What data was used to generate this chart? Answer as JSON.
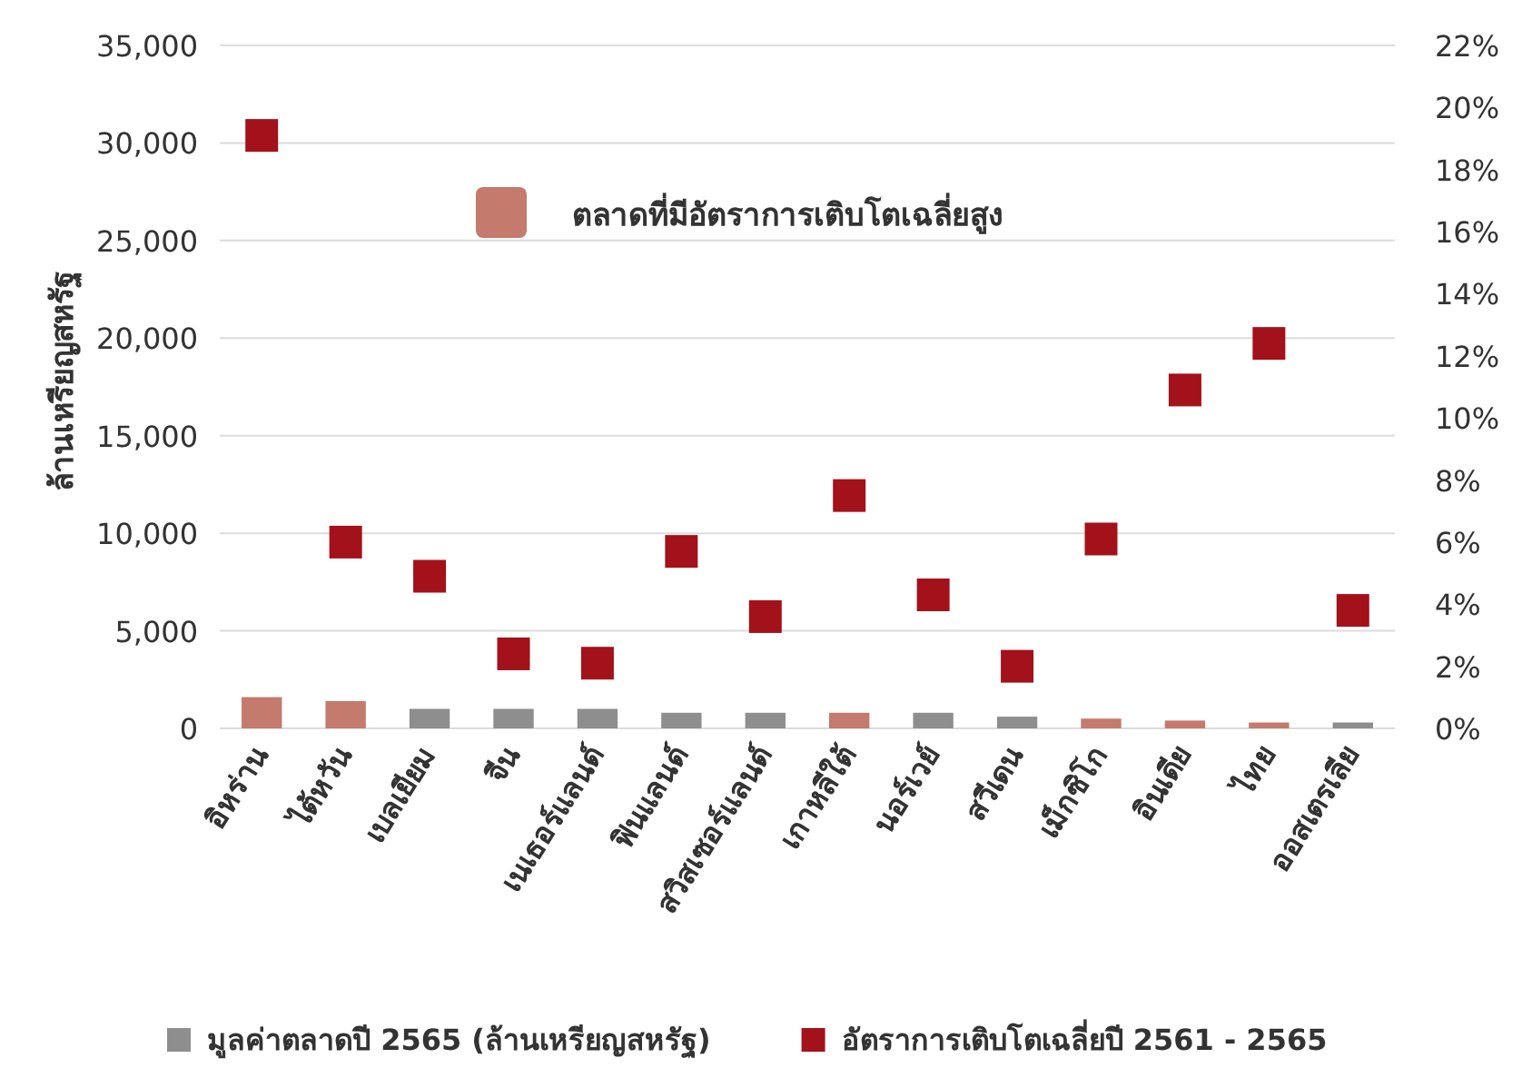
{
  "chart_data": {
    "type": "bar",
    "ylabel": "ล้านเหรียญสหรัฐ",
    "categories": [
      "อิหร่าน",
      "ไต้หวัน",
      "เบลเยียม",
      "จีน",
      "เนเธอร์แลนด์",
      "ฟินแลนด์",
      "สวิสเซอร์แลนด์",
      "เกาหลีใต้",
      "นอร์เวย์",
      "สวีเดน",
      "เม็กซิโก",
      "อินเดีย",
      "ไทย",
      "ออสเตรเลีย"
    ],
    "series": [
      {
        "name": "มูลค่าตลาดปี 2565 (ล้านเหรียญสหรัฐ)",
        "color": "#8e8e8e",
        "values": [
          null,
          null,
          1000,
          1000,
          1000,
          800,
          800,
          null,
          800,
          600,
          null,
          null,
          null,
          300
        ]
      },
      {
        "name": "ตลาดที่มีอัตราการเติบโตเฉลี่ยสูง",
        "color": "#c47a6c",
        "values": [
          1600,
          1400,
          null,
          null,
          null,
          null,
          null,
          800,
          null,
          null,
          500,
          400,
          300,
          null
        ]
      },
      {
        "name": "อัตราการเติบโตเฉลี่ยปี 2561 - 2565",
        "type": "scatter",
        "axis": "y2",
        "marker": "square",
        "color": "#a3111a",
        "values": [
          19.1,
          6.0,
          4.9,
          2.4,
          2.1,
          5.7,
          3.6,
          7.5,
          4.3,
          2.0,
          6.1,
          10.9,
          12.4,
          3.8
        ]
      }
    ],
    "ylim": [
      0,
      35000
    ],
    "yticks": [
      {
        "value": 0,
        "label": "0"
      },
      {
        "value": 5000,
        "label": "5,000"
      },
      {
        "value": 10000,
        "label": "10,000"
      },
      {
        "value": 15000,
        "label": "15,000"
      },
      {
        "value": 20000,
        "label": "20,000"
      },
      {
        "value": 25000,
        "label": "25,000"
      },
      {
        "value": 30000,
        "label": "30,000"
      },
      {
        "value": 35000,
        "label": "35,000"
      }
    ],
    "y2lim": [
      0,
      22
    ],
    "y2ticks": [
      {
        "value": 0,
        "label": "0%"
      },
      {
        "value": 2,
        "label": "2%"
      },
      {
        "value": 4,
        "label": "4%"
      },
      {
        "value": 6,
        "label": "6%"
      },
      {
        "value": 8,
        "label": "8%"
      },
      {
        "value": 10,
        "label": "10%"
      },
      {
        "value": 12,
        "label": "12%"
      },
      {
        "value": 14,
        "label": "14%"
      },
      {
        "value": 16,
        "label": "16%"
      },
      {
        "value": 18,
        "label": "18%"
      },
      {
        "value": 20,
        "label": "20%"
      },
      {
        "value": 22,
        "label": "22%"
      }
    ],
    "grid": "y",
    "legend": "bottom"
  }
}
